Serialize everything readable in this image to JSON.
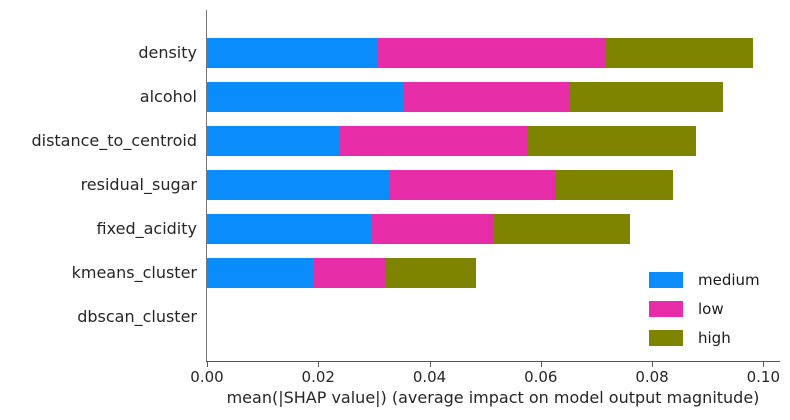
{
  "chart_data": {
    "type": "bar",
    "orientation": "horizontal",
    "stacked": true,
    "title": "",
    "xlabel": "mean(|SHAP value|) (average impact on model output magnitude)",
    "ylabel": "",
    "categories": [
      "density",
      "alcohol",
      "distance_to_centroid",
      "residual_sugar",
      "fixed_acidity",
      "kmeans_cluster",
      "dbscan_cluster"
    ],
    "series": [
      {
        "name": "medium",
        "color": "#0a8cfb",
        "values": [
          0.0307,
          0.0354,
          0.0238,
          0.0328,
          0.0296,
          0.019,
          0.0
        ]
      },
      {
        "name": "low",
        "color": "#e72ca8",
        "values": [
          0.041,
          0.0298,
          0.0339,
          0.03,
          0.0218,
          0.0132,
          0.0
        ]
      },
      {
        "name": "high",
        "color": "#7e8400",
        "values": [
          0.0264,
          0.0275,
          0.0302,
          0.021,
          0.0247,
          0.0161,
          0.0
        ]
      }
    ],
    "totals": [
      0.0981,
      0.0927,
      0.0879,
      0.0838,
      0.0761,
      0.0483,
      0.0
    ],
    "x_ticks": [
      "0.00",
      "0.02",
      "0.04",
      "0.06",
      "0.08",
      "0.10"
    ],
    "x_tick_values": [
      0.0,
      0.02,
      0.04,
      0.06,
      0.08,
      0.1
    ],
    "xlim": [
      0.0,
      0.103
    ],
    "grid": false,
    "legend": {
      "position": "lower right",
      "frame": false,
      "entries": [
        "medium",
        "low",
        "high"
      ]
    },
    "colors": {
      "medium": "#0a8cfb",
      "low": "#e72ca8",
      "high": "#7e8400",
      "axis": "#555555",
      "text": "#262626",
      "background": "#ffffff"
    }
  }
}
